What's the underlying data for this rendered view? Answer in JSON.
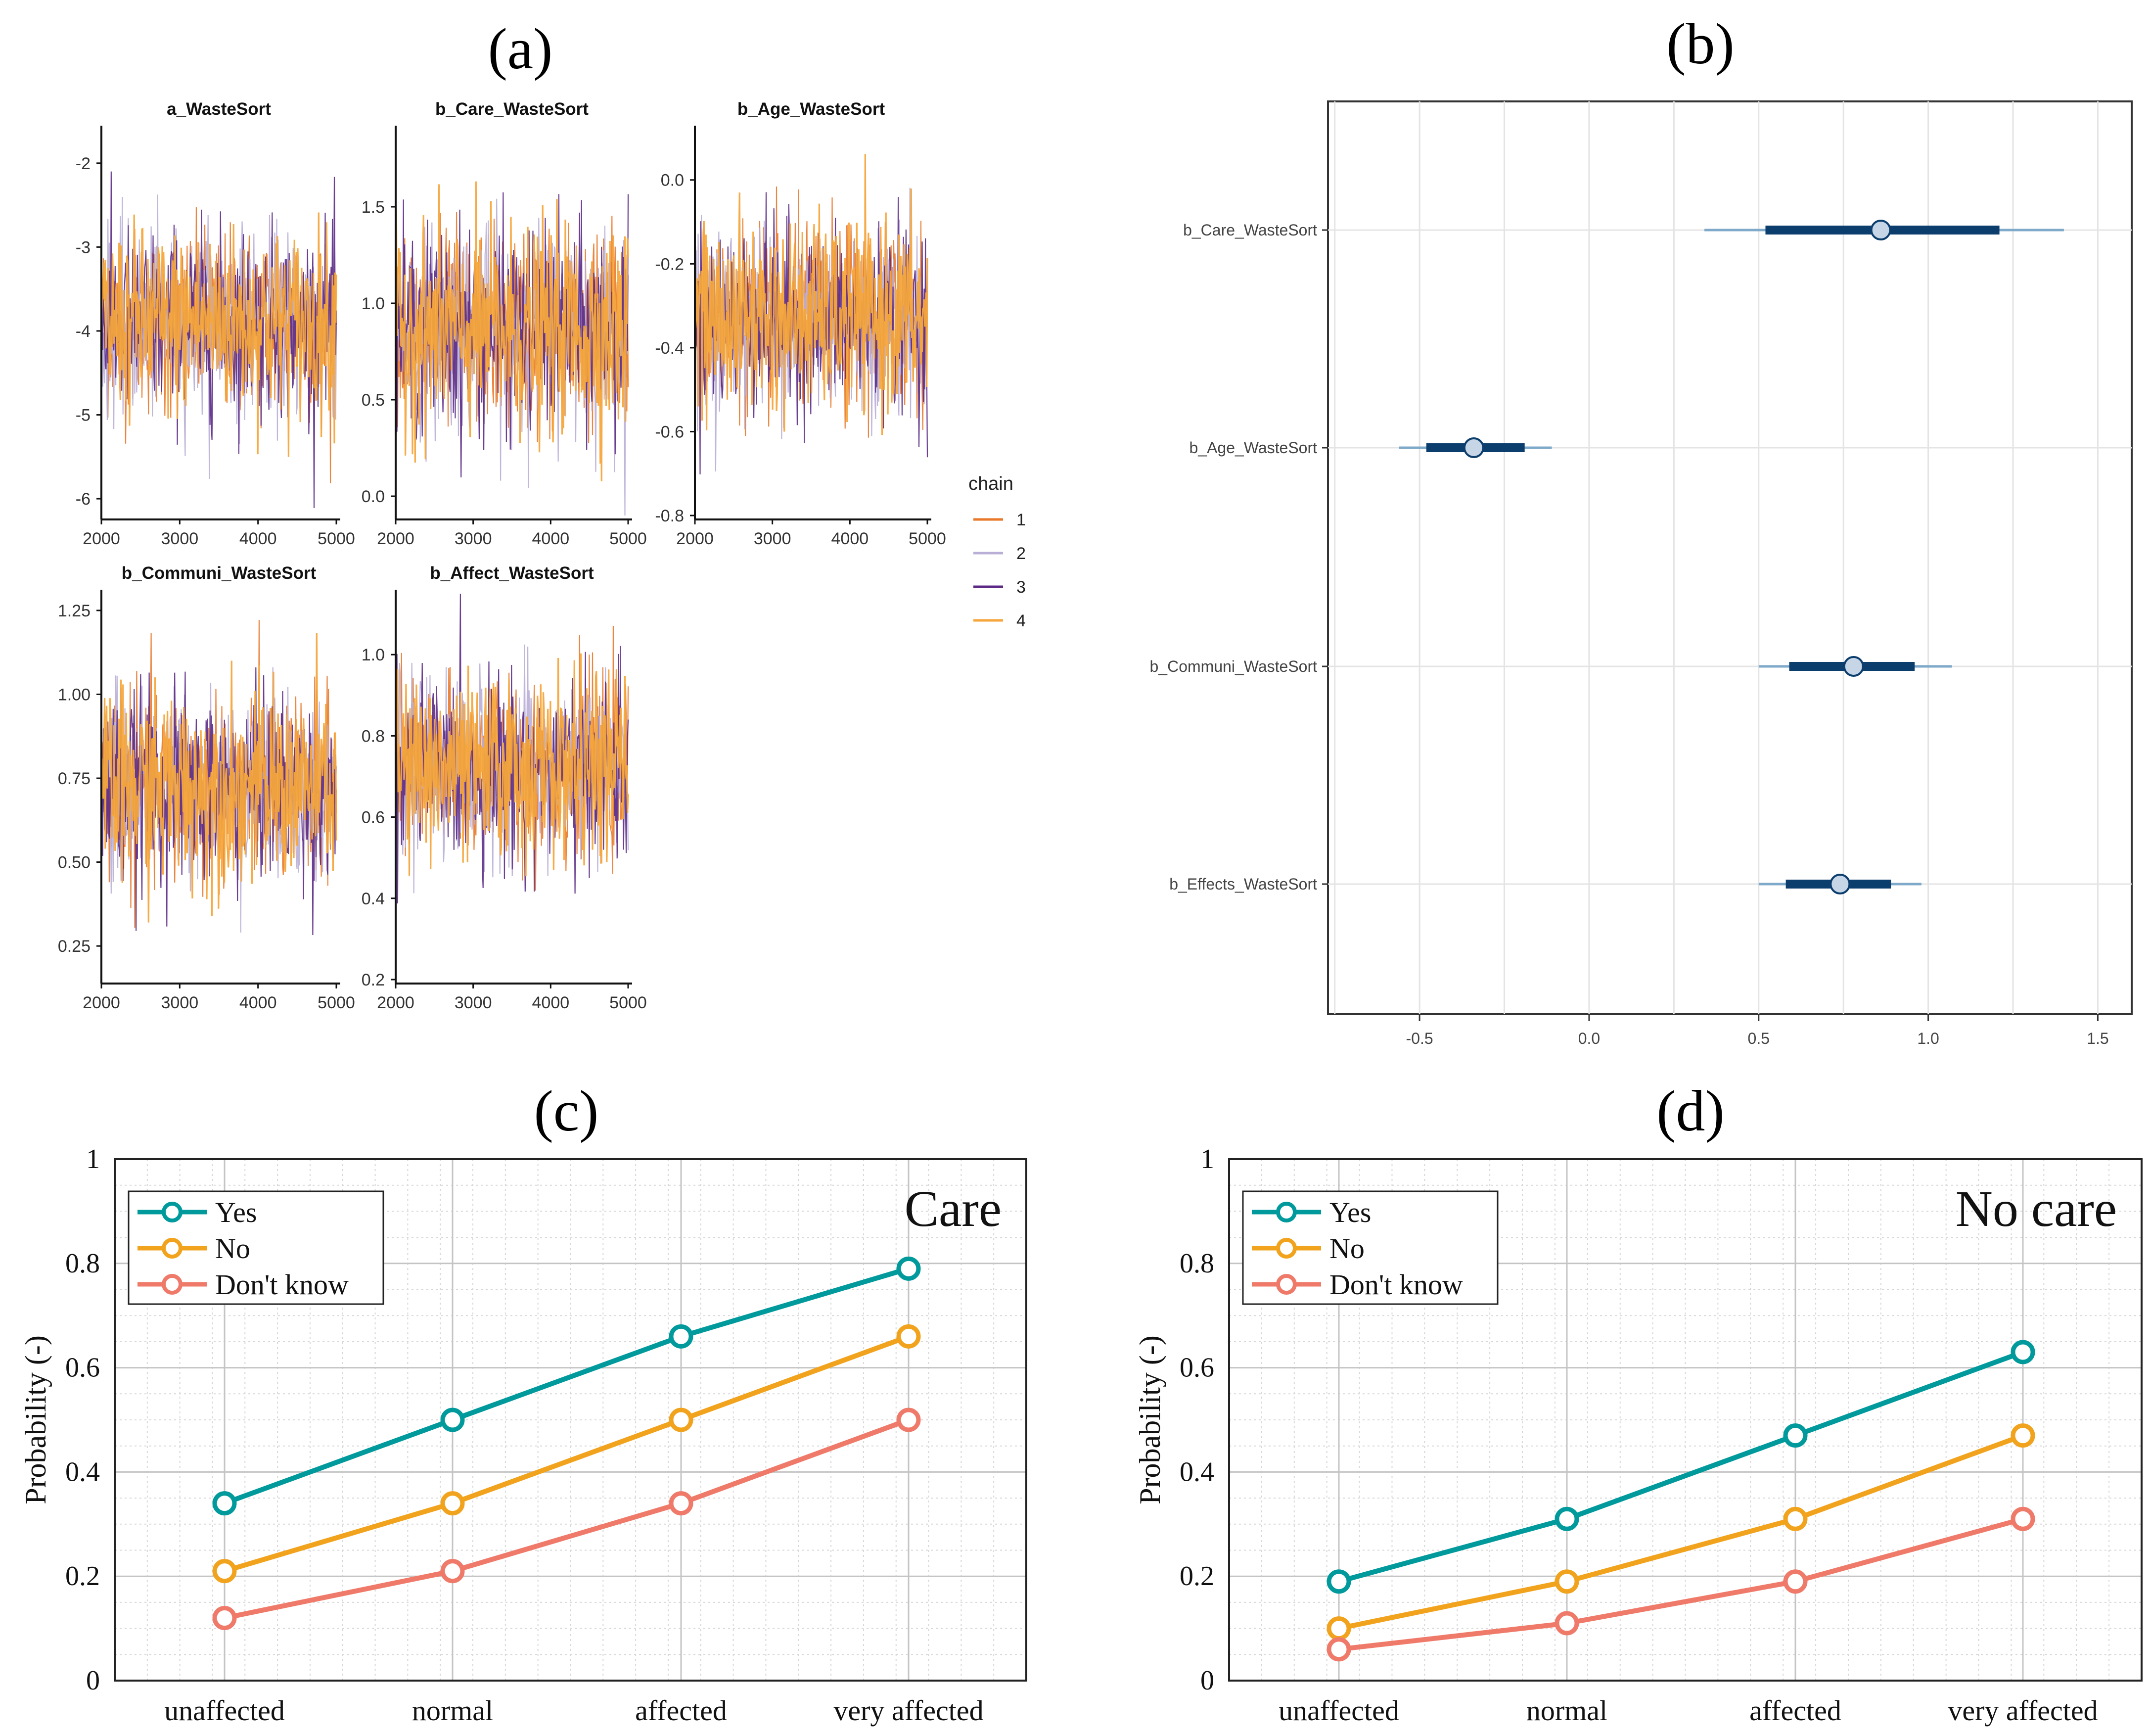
{
  "chart_data": [
    {
      "panel": "(a)",
      "type": "line",
      "description": "MCMC trace plots",
      "legend_title": "chain",
      "legend": [
        {
          "name": "1",
          "color": "#e8792b"
        },
        {
          "name": "2",
          "color": "#b9aed6"
        },
        {
          "name": "3",
          "color": "#5b2a86"
        },
        {
          "name": "4",
          "color": "#f6a63c"
        }
      ],
      "xlim": [
        2000,
        5000
      ],
      "xticks": [
        "2000",
        "3000",
        "4000",
        "5000"
      ],
      "subplots": [
        {
          "title": "a_WasteSort",
          "mean": -3.9,
          "sd": 0.55,
          "ylim": [
            -6.2,
            -1.6
          ],
          "yticks": [
            {
              "v": -2,
              "l": "-2"
            },
            {
              "v": -3,
              "l": "-3"
            },
            {
              "v": -4,
              "l": "-4"
            },
            {
              "v": -5,
              "l": "-5"
            },
            {
              "v": -6,
              "l": "-6"
            }
          ]
        },
        {
          "title": "b_Care_WasteSort",
          "mean": 0.86,
          "sd": 0.26,
          "ylim": [
            -0.1,
            1.9
          ],
          "yticks": [
            {
              "v": 1.5,
              "l": "1.5"
            },
            {
              "v": 1.0,
              "l": "1.0"
            },
            {
              "v": 0.5,
              "l": "0.5"
            },
            {
              "v": 0.0,
              "l": "0.0"
            }
          ]
        },
        {
          "title": "b_Age_WasteSort",
          "mean": -0.33,
          "sd": 0.11,
          "ylim": [
            -0.8,
            0.12
          ],
          "yticks": [
            {
              "v": 0.0,
              "l": "0.0"
            },
            {
              "v": -0.2,
              "l": "-0.2"
            },
            {
              "v": -0.4,
              "l": "-0.4"
            },
            {
              "v": -0.6,
              "l": "-0.6"
            },
            {
              "v": -0.8,
              "l": "-0.8"
            }
          ]
        },
        {
          "title": "b_Communi_WasteSort",
          "mean": 0.72,
          "sd": 0.14,
          "ylim": [
            0.15,
            1.3
          ],
          "yticks": [
            {
              "v": 1.25,
              "l": "1.25"
            },
            {
              "v": 1.0,
              "l": "1.00"
            },
            {
              "v": 0.75,
              "l": "0.75"
            },
            {
              "v": 0.5,
              "l": "0.50"
            },
            {
              "v": 0.25,
              "l": "0.25"
            }
          ]
        },
        {
          "title": "b_Affect_WasteSort",
          "mean": 0.72,
          "sd": 0.11,
          "ylim": [
            0.2,
            1.15
          ],
          "yticks": [
            {
              "v": 1.0,
              "l": "1.0"
            },
            {
              "v": 0.8,
              "l": "0.8"
            },
            {
              "v": 0.6,
              "l": "0.6"
            },
            {
              "v": 0.4,
              "l": "0.4"
            },
            {
              "v": 0.2,
              "l": "0.2"
            }
          ]
        }
      ]
    },
    {
      "panel": "(b)",
      "type": "scatter",
      "description": "Posterior interval plot",
      "xlim": [
        -0.77,
        1.6
      ],
      "xticks": [
        {
          "v": -0.5,
          "l": "-0.5"
        },
        {
          "v": 0.0,
          "l": "0.0"
        },
        {
          "v": 0.5,
          "l": "0.5"
        },
        {
          "v": 1.0,
          "l": "1.0"
        },
        {
          "v": 1.5,
          "l": "1.5"
        }
      ],
      "params": [
        {
          "name": "b_Care_WasteSort",
          "median": 0.86,
          "inner": [
            0.52,
            1.21
          ],
          "outer": [
            0.34,
            1.4
          ]
        },
        {
          "name": "b_Age_WasteSort",
          "median": -0.34,
          "inner": [
            -0.48,
            -0.19
          ],
          "outer": [
            -0.56,
            -0.11
          ]
        },
        {
          "name": "b_Communi_WasteSort",
          "median": 0.78,
          "inner": [
            0.59,
            0.96
          ],
          "outer": [
            0.5,
            1.07
          ]
        },
        {
          "name": "b_Effects_WasteSort",
          "median": 0.74,
          "inner": [
            0.58,
            0.89
          ],
          "outer": [
            0.5,
            0.98
          ]
        }
      ],
      "colors": {
        "outer": "#7fa9c9",
        "inner": "#0b3d6d",
        "point_fill": "#c6d6e6",
        "point_edge": "#0b3d6d"
      }
    },
    {
      "panel": "(c)",
      "type": "line",
      "annotation": "Care",
      "categories": [
        "unaffected",
        "normal",
        "affected",
        "very affected"
      ],
      "ylabel": "Probability (-)",
      "ylim": [
        0,
        1
      ],
      "yticks": [
        {
          "v": 0,
          "l": "0"
        },
        {
          "v": 0.2,
          "l": "0.2"
        },
        {
          "v": 0.4,
          "l": "0.4"
        },
        {
          "v": 0.6,
          "l": "0.6"
        },
        {
          "v": 0.8,
          "l": "0.8"
        },
        {
          "v": 1,
          "l": "1"
        }
      ],
      "series": [
        {
          "name": "Yes",
          "color": "#00999c",
          "values": [
            0.34,
            0.5,
            0.66,
            0.79
          ]
        },
        {
          "name": "No",
          "color": "#f2a31d",
          "values": [
            0.21,
            0.34,
            0.5,
            0.66
          ]
        },
        {
          "name": "Don't know",
          "color": "#ef7a6a",
          "values": [
            0.12,
            0.21,
            0.34,
            0.5
          ]
        }
      ]
    },
    {
      "panel": "(d)",
      "type": "line",
      "annotation": "No care",
      "categories": [
        "unaffected",
        "normal",
        "affected",
        "very affected"
      ],
      "ylabel": "Probability (-)",
      "ylim": [
        0,
        1
      ],
      "yticks": [
        {
          "v": 0,
          "l": "0"
        },
        {
          "v": 0.2,
          "l": "0.2"
        },
        {
          "v": 0.4,
          "l": "0.4"
        },
        {
          "v": 0.6,
          "l": "0.6"
        },
        {
          "v": 0.8,
          "l": "0.8"
        },
        {
          "v": 1,
          "l": "1"
        }
      ],
      "series": [
        {
          "name": "Yes",
          "color": "#00999c",
          "values": [
            0.19,
            0.31,
            0.47,
            0.63
          ]
        },
        {
          "name": "No",
          "color": "#f2a31d",
          "values": [
            0.1,
            0.19,
            0.31,
            0.47
          ]
        },
        {
          "name": "Don't know",
          "color": "#ef7a6a",
          "values": [
            0.06,
            0.11,
            0.19,
            0.31
          ]
        }
      ]
    }
  ]
}
